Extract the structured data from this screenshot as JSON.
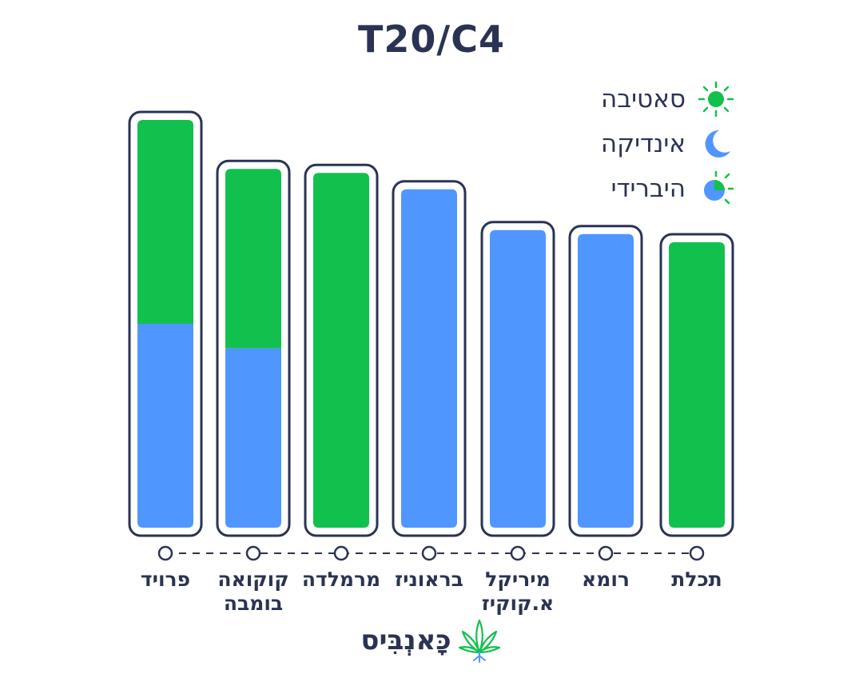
{
  "chart_data": {
    "type": "bar",
    "stacked": true,
    "title": "T20/C4",
    "categories": [
      "פרויד",
      "קוקואה בומבה",
      "מרמלדה",
      "בראוניז",
      "מיריקל א.קוקיז",
      "רומא",
      "תכלת"
    ],
    "category_lines": [
      [
        "פרויד"
      ],
      [
        "קוקואה",
        "בומבה"
      ],
      [
        "מרמלדה"
      ],
      [
        "בראוניז"
      ],
      [
        "מיריקל",
        "א.קוקיז"
      ],
      [
        "רומא"
      ],
      [
        "תכלת"
      ]
    ],
    "series": [
      {
        "name": "אינדיקה",
        "color": "#5096ff",
        "values": [
          50,
          44,
          0,
          83,
          73,
          72,
          0
        ]
      },
      {
        "name": "סאטיבה",
        "color": "#12c04e",
        "values": [
          50,
          44,
          87,
          0,
          0,
          0,
          70
        ]
      }
    ],
    "ylim": [
      0,
      100
    ],
    "grid": false,
    "legend_position": "top-right"
  },
  "legend": {
    "items": [
      {
        "label": "סאטיבה",
        "icon": "sun-icon"
      },
      {
        "label": "אינדיקה",
        "icon": "moon-icon"
      },
      {
        "label": "היברידי",
        "icon": "hybrid-icon"
      }
    ]
  },
  "logo": {
    "text": "כָּאנְבִּיס",
    "icon": "cannabis-leaf-icon"
  },
  "colors": {
    "sativa": "#12c04e",
    "indica": "#5096ff",
    "outline": "#2a3353"
  }
}
